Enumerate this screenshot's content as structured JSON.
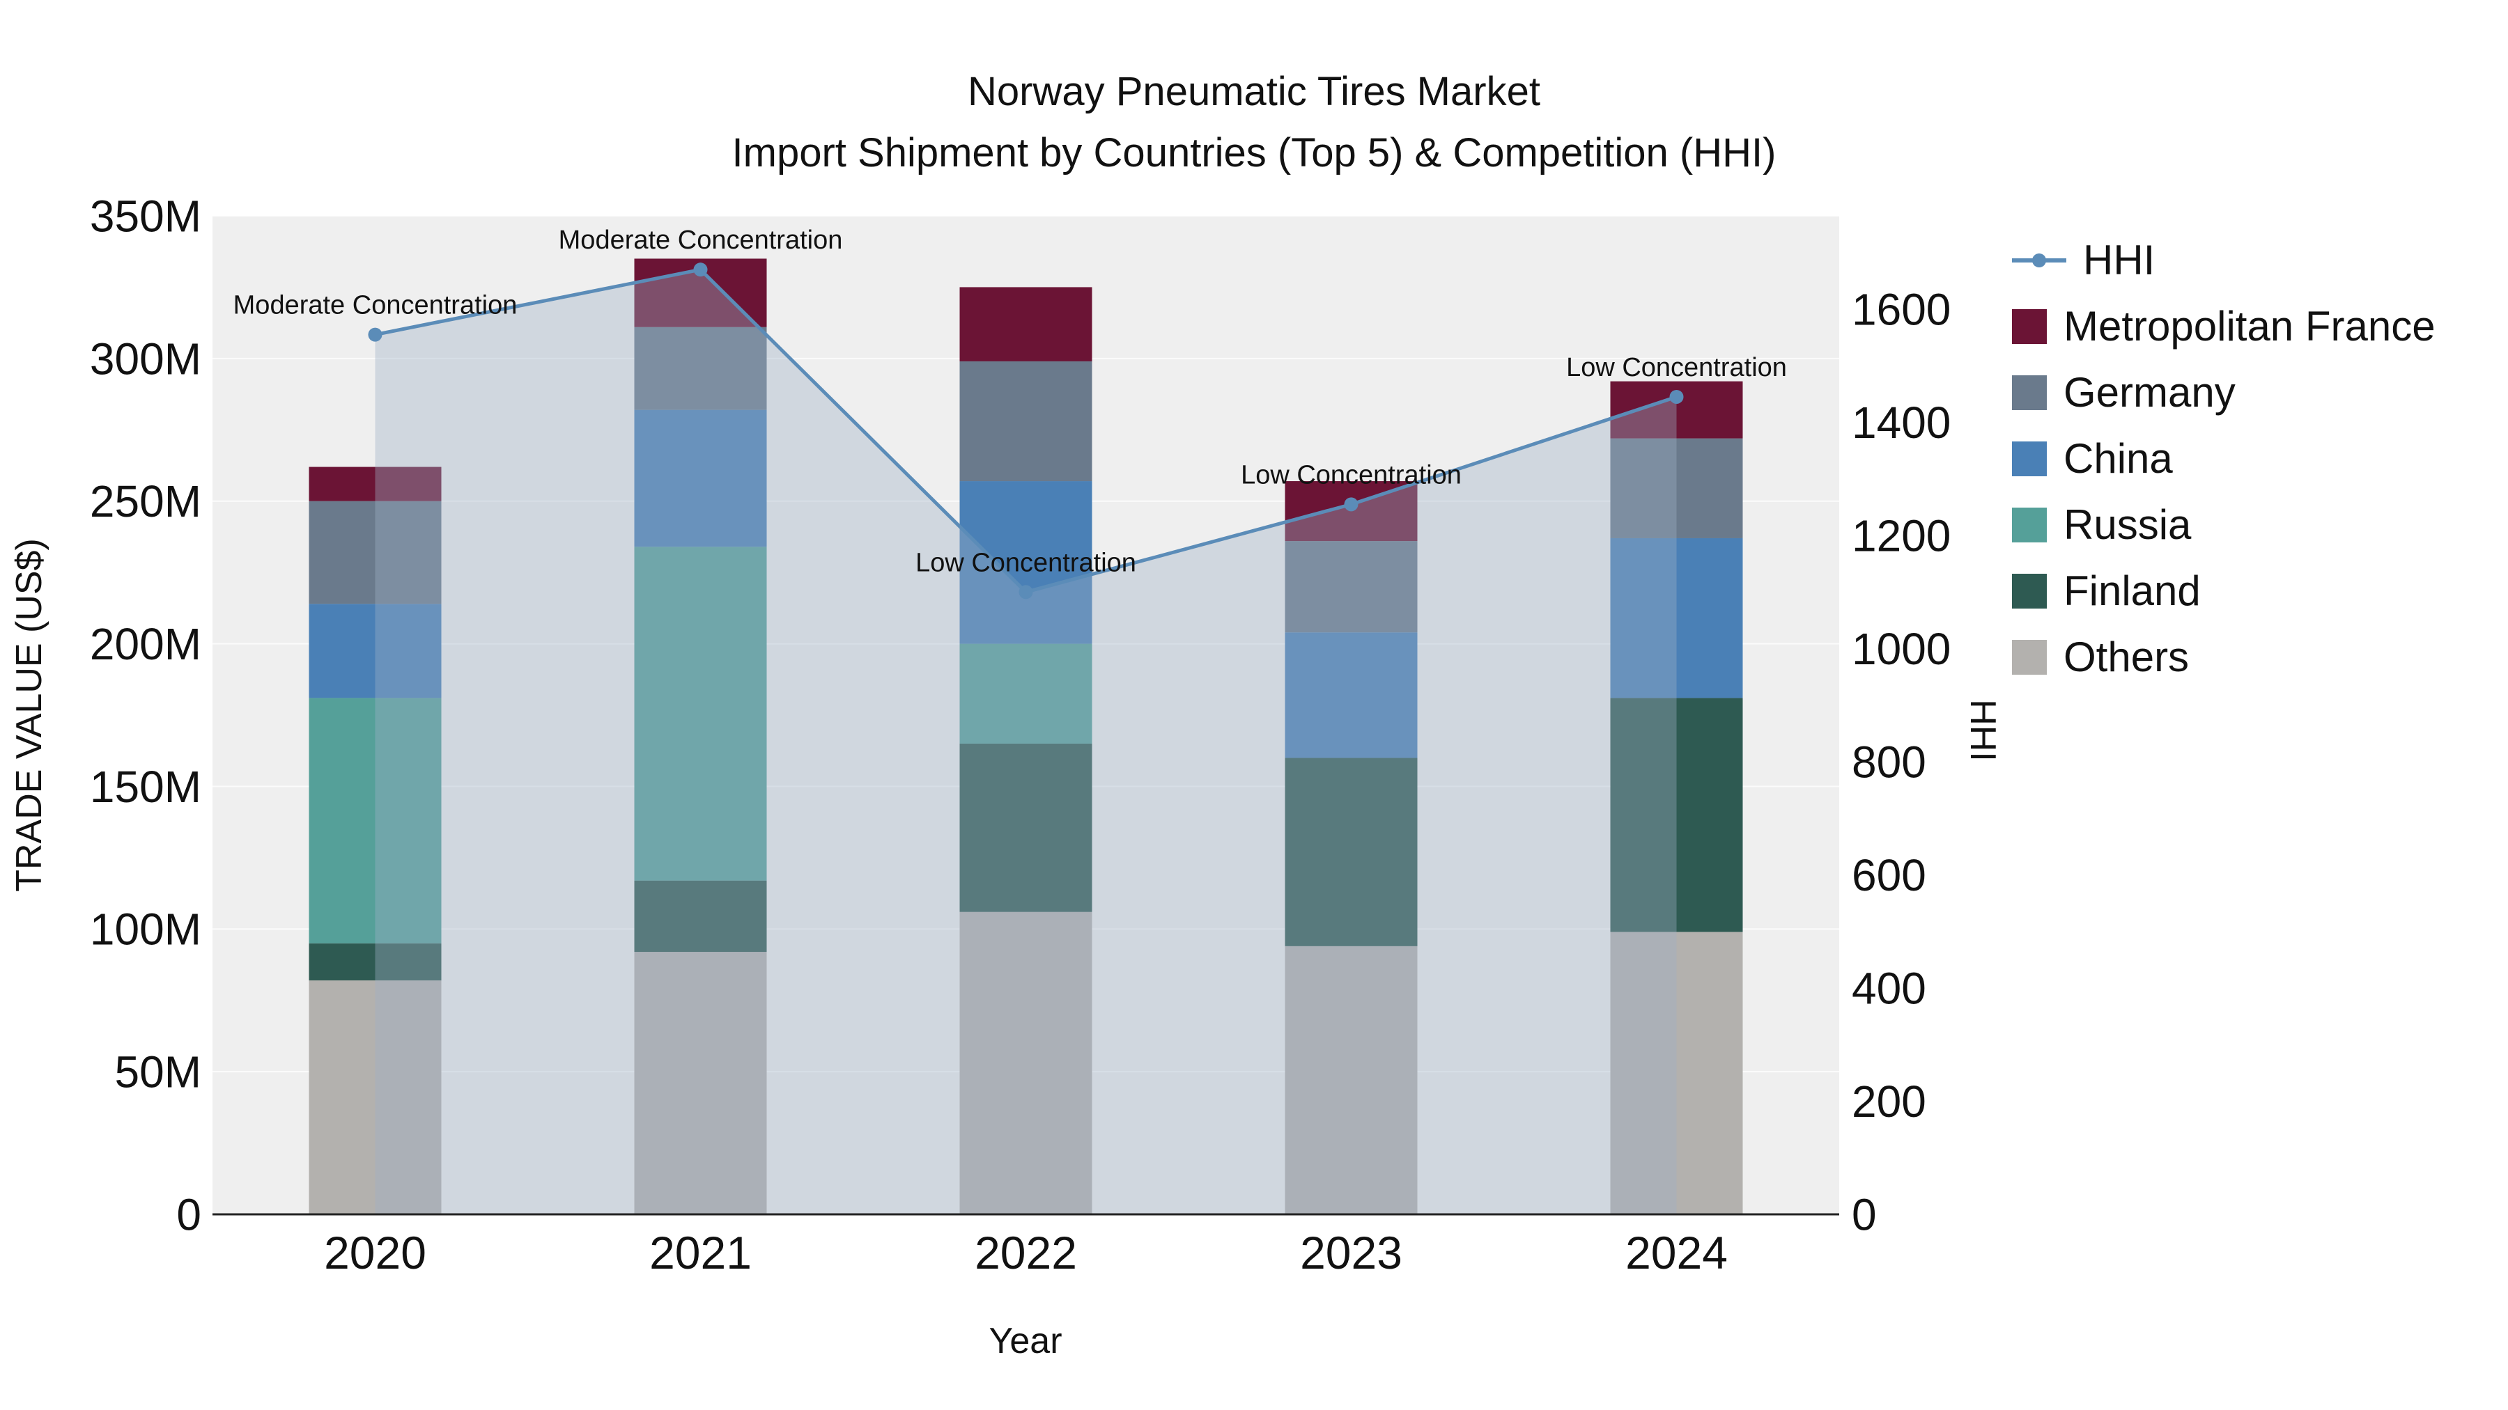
{
  "title": {
    "line1": "Norway Pneumatic Tires Market",
    "line2": "Import Shipment by Countries (Top 5) & Competition (HHI)"
  },
  "axes": {
    "y_left_title": "TRADE VALUE (US$)",
    "y_right_title": "HHI",
    "x_title": "Year"
  },
  "legend": {
    "items": [
      {
        "label": "HHI",
        "type": "line",
        "color": "#5b8cb8"
      },
      {
        "label": "Metropolitan France",
        "type": "box",
        "color": "#6b1435"
      },
      {
        "label": "Germany",
        "type": "box",
        "color": "#6a7a8c"
      },
      {
        "label": "China",
        "type": "box",
        "color": "#4a80b6"
      },
      {
        "label": "Russia",
        "type": "box",
        "color": "#55a099"
      },
      {
        "label": "Finland",
        "type": "box",
        "color": "#2e5a52"
      },
      {
        "label": "Others",
        "type": "box",
        "color": "#b3b1ae"
      }
    ]
  },
  "chart_data": {
    "type": "bar",
    "subtype": "stacked-bars-with-line-overlay",
    "title": "Norway Pneumatic Tires Market — Import Shipment by Countries (Top 5) & Competition (HHI)",
    "xlabel": "Year",
    "ylabel_left": "TRADE VALUE (US$)",
    "ylabel_right": "HHI",
    "categories": [
      "2020",
      "2021",
      "2022",
      "2023",
      "2024"
    ],
    "bar_value_unit": "million US$",
    "stack_order": "bottom-to-top",
    "series": [
      {
        "name": "Others",
        "color": "#b3b1ae",
        "values": [
          82,
          92,
          106,
          94,
          99
        ]
      },
      {
        "name": "Finland",
        "color": "#2e5a52",
        "values": [
          13,
          25,
          59,
          66,
          82
        ]
      },
      {
        "name": "Russia",
        "color": "#55a099",
        "values": [
          86,
          117,
          35,
          0,
          0
        ]
      },
      {
        "name": "China",
        "color": "#4a80b6",
        "values": [
          33,
          48,
          57,
          44,
          56
        ]
      },
      {
        "name": "Germany",
        "color": "#6a7a8c",
        "values": [
          36,
          29,
          42,
          32,
          35
        ]
      },
      {
        "name": "Metropolitan France",
        "color": "#6b1435",
        "values": [
          12,
          24,
          26,
          21,
          20
        ]
      }
    ],
    "bar_totals": [
      262,
      335,
      325,
      257,
      292
    ],
    "line_series": {
      "name": "HHI",
      "color": "#5b8cb8",
      "area_fill": "rgba(159,176,196,0.38)",
      "values": [
        1555,
        1670,
        1100,
        1255,
        1445
      ]
    },
    "annotations": [
      {
        "x": "2020",
        "text": "Moderate Concentration"
      },
      {
        "x": "2021",
        "text": "Moderate Concentration"
      },
      {
        "x": "2022",
        "text": "Low Concentration"
      },
      {
        "x": "2023",
        "text": "Low Concentration"
      },
      {
        "x": "2024",
        "text": "Low Concentration"
      }
    ],
    "left_axis": {
      "max": 350,
      "tick_values": [
        0,
        50,
        100,
        150,
        200,
        250,
        300,
        350
      ],
      "tick_labels": [
        "0",
        "50M",
        "100M",
        "150M",
        "200M",
        "250M",
        "300M",
        "350M"
      ]
    },
    "right_axis": {
      "max": 1765,
      "tick_values": [
        0,
        200,
        400,
        600,
        800,
        1000,
        1200,
        1400,
        1600
      ],
      "tick_labels": [
        "0",
        "200",
        "400",
        "600",
        "800",
        "1000",
        "1200",
        "1400",
        "1600"
      ]
    },
    "grid": "horizontal-light",
    "legend_position": "right"
  }
}
